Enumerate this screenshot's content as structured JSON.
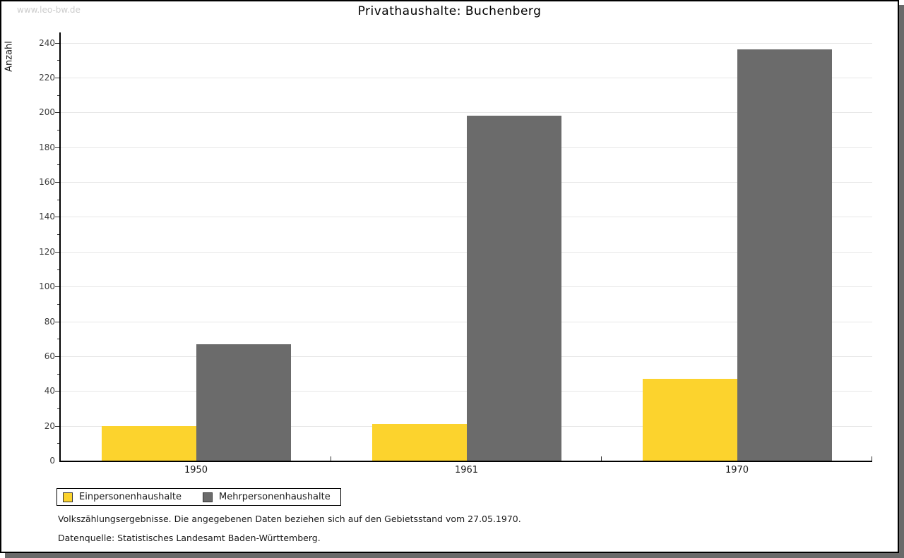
{
  "watermark": "www.leo-bw.de",
  "title": "Privathaushalte: Buchenberg",
  "chart_data": {
    "type": "bar",
    "title": "Privathaushalte: Buchenberg",
    "xlabel": "",
    "ylabel": "Anzahl",
    "categories": [
      "1950",
      "1961",
      "1970"
    ],
    "series": [
      {
        "name": "Einpersonenhaushalte",
        "color": "#fcd32d",
        "values": [
          20,
          21,
          47
        ]
      },
      {
        "name": "Mehrpersonenhaushalte",
        "color": "#6b6b6b",
        "values": [
          67,
          198,
          236
        ]
      }
    ],
    "ylim": [
      0,
      246
    ],
    "ytick_step_major": 20,
    "ytick_step_minor": 10,
    "ytick_max_labeled": 240,
    "grid": true,
    "legend_position": "bottom-left"
  },
  "footnotes": [
    "Volkszählungsergebnisse. Die angegebenen Daten beziehen sich auf den Gebietsstand vom 27.05.1970.",
    "Datenquelle: Statistisches Landesamt Baden-Württemberg."
  ],
  "colors": {
    "series_1": "#fcd32d",
    "series_2": "#6b6b6b",
    "gridline": "#e7e7e7",
    "axis": "#000000",
    "frame_shadow": "#6a6a6a",
    "watermark": "#cccccc",
    "background": "#ffffff"
  }
}
